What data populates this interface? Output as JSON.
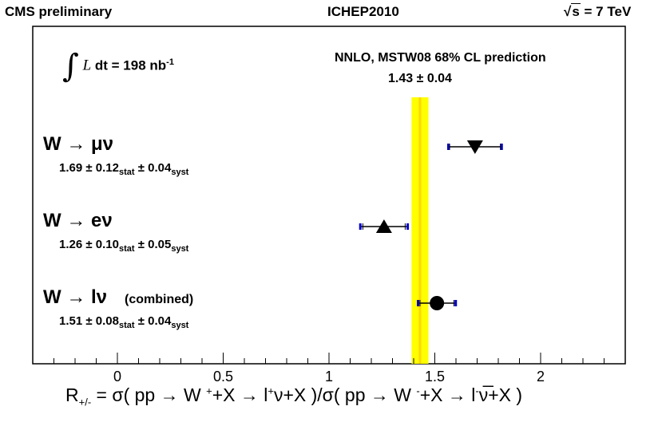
{
  "header": {
    "left": "CMS preliminary",
    "center": "ICHEP2010",
    "right_prefix": "√",
    "right_s": "s",
    "right_value": " = 7 TeV"
  },
  "luminosity": {
    "integral_symbol": "∫",
    "L": "L",
    "text": " dt = 198 nb",
    "unit_exp": "-1"
  },
  "prediction": {
    "label": "NNLO, MSTW08 68% CL prediction",
    "value_text": "1.43 ± 0.04"
  },
  "rows": [
    {
      "title": "W → μν",
      "value": "1.69",
      "stat": "0.12",
      "syst": "0.04",
      "pm": "±",
      "stat_label": "stat",
      "syst_label": "syst",
      "extra": ""
    },
    {
      "title": "W → eν",
      "value": "1.26",
      "stat": "0.10",
      "syst": "0.05",
      "pm": "±",
      "stat_label": "stat",
      "syst_label": "syst",
      "extra": ""
    },
    {
      "title": "W → lν",
      "value": "1.51",
      "stat": "0.08",
      "syst": "0.04",
      "pm": "±",
      "stat_label": "stat",
      "syst_label": "syst",
      "extra": "(combined)"
    }
  ],
  "xlabel": {
    "R": "R",
    "R_sub": "+/-",
    "text1": " = σ( pp → W ",
    "sup1": "+",
    "text2": "+X → l",
    "sup2": "+",
    "text3": "ν+X )/σ( pp → W ",
    "sup3": "-",
    "text4": "+X → l",
    "sup4": "-",
    "text5": "ν̅+X )"
  },
  "chart_data": {
    "type": "scatter",
    "xlim": [
      -0.4,
      2.4
    ],
    "x_ticks": [
      0,
      0.5,
      1,
      1.5,
      2
    ],
    "x_tick_labels": [
      "0",
      "0.5",
      "1",
      "1.5",
      "2"
    ],
    "prediction_band": {
      "center": 1.43,
      "error": 0.04,
      "color": "#ffff00",
      "center_color": "#ffd700"
    },
    "points": [
      {
        "value": 1.69,
        "err_stat": 0.12,
        "err_total": 0.126,
        "marker": "triangle-down"
      },
      {
        "value": 1.26,
        "err_stat": 0.1,
        "err_total": 0.112,
        "marker": "triangle-up"
      },
      {
        "value": 1.51,
        "err_stat": 0.08,
        "err_total": 0.089,
        "marker": "circle"
      }
    ],
    "cap_color": "#0000cc"
  }
}
